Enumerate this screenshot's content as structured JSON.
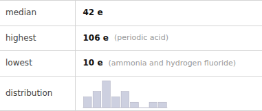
{
  "chart_data": [
    {
      "type": "table",
      "categories": [
        "median",
        "highest",
        "lowest",
        "distribution"
      ],
      "values": [
        "42 e",
        "106 e",
        "10 e",
        null
      ],
      "annotations": [
        null,
        "(periodic acid)",
        "(ammonia and hydrogen fluoride)",
        null
      ]
    },
    {
      "type": "bar",
      "categories": [
        null,
        null,
        null,
        null,
        null,
        null,
        null,
        null,
        null
      ],
      "values": [
        2,
        3,
        5,
        2,
        3,
        1,
        0,
        1,
        1
      ],
      "color": "#cdd0e0",
      "ylim": [
        0,
        5.3
      ],
      "tick_labels": false
    }
  ]
}
